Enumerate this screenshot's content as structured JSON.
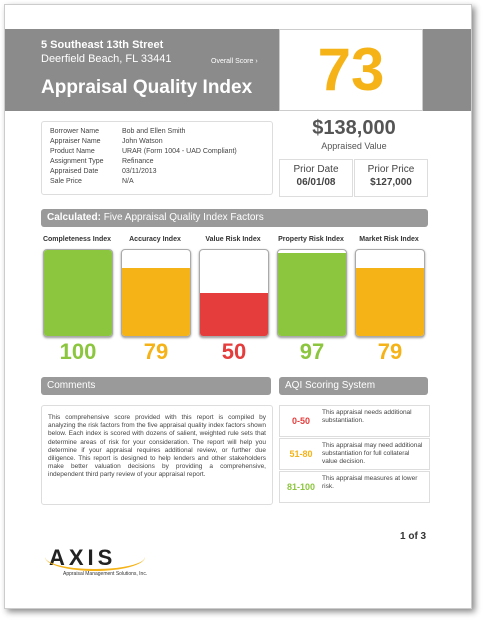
{
  "header": {
    "address_line1": "5 Southeast 13th Street",
    "address_line2": "Deerfield Beach, FL 33441",
    "overall_score_label": "Overall Score",
    "title": "Appraisal Quality Index",
    "overall_score": 73
  },
  "property": {
    "rows": [
      [
        "Borrower Name",
        "Bob and Ellen Smith"
      ],
      [
        "Appraiser Name",
        "John Watson"
      ],
      [
        "Product Name",
        "URAR (Form 1004 - UAD Compliant)"
      ],
      [
        "Assignment Type",
        "Refinance"
      ],
      [
        "Appraised Date",
        "03/11/2013"
      ],
      [
        "Sale Price",
        "N/A"
      ]
    ],
    "appraised_value": "$138,000",
    "appraised_value_label": "Appraised Value",
    "prior": [
      {
        "label": "Prior Date",
        "value": "06/01/08"
      },
      {
        "label": "Prior Price",
        "value": "$127,000"
      }
    ]
  },
  "factors": {
    "title_prefix": "Calculated:",
    "title": "Five Appraisal Quality Index Factors",
    "items": [
      {
        "name": "Completeness Index",
        "score": 100,
        "color": "#8cc63e"
      },
      {
        "name": "Accuracy Index",
        "score": 79,
        "color": "#f5b318"
      },
      {
        "name": "Value Risk Index",
        "score": 50,
        "color": "#e53c3c"
      },
      {
        "name": "Property Risk Index",
        "score": 97,
        "color": "#8cc63e"
      },
      {
        "name": "Market Risk Index",
        "score": 79,
        "color": "#f5b318"
      }
    ]
  },
  "comments": {
    "title": "Comments",
    "text": "This comprehensive score provided with this report is compiled by analyzing the risk factors from the five appraisal quality index factors shown below. Each index is scored with dozens of salient, weighted rule sets that determine areas of risk for your consideration. The report will help you determine if your appraisal requires additional review, or further due diligence. This report is designed to help lenders and other stakeholders make better valuation decisions by providing a comprehensive, independent third party review of your appraisal report."
  },
  "scoring": {
    "title": "AQI Scoring System",
    "rows": [
      {
        "range": "0-50",
        "text": "This appraisal needs additional substantiation.",
        "color": "#e53c3c"
      },
      {
        "range": "51-80",
        "text": "This appraisal may need additional substantiation for full collateral value decision.",
        "color": "#f5b318"
      },
      {
        "range": "81-100",
        "text": "This appraisal measures at lower risk.",
        "color": "#8cc63e"
      }
    ]
  },
  "footer": {
    "page": "1 of 3",
    "logo": "AXIS",
    "tagline_1": "Appraisal",
    "tagline_2": "Management Solutions, Inc."
  }
}
